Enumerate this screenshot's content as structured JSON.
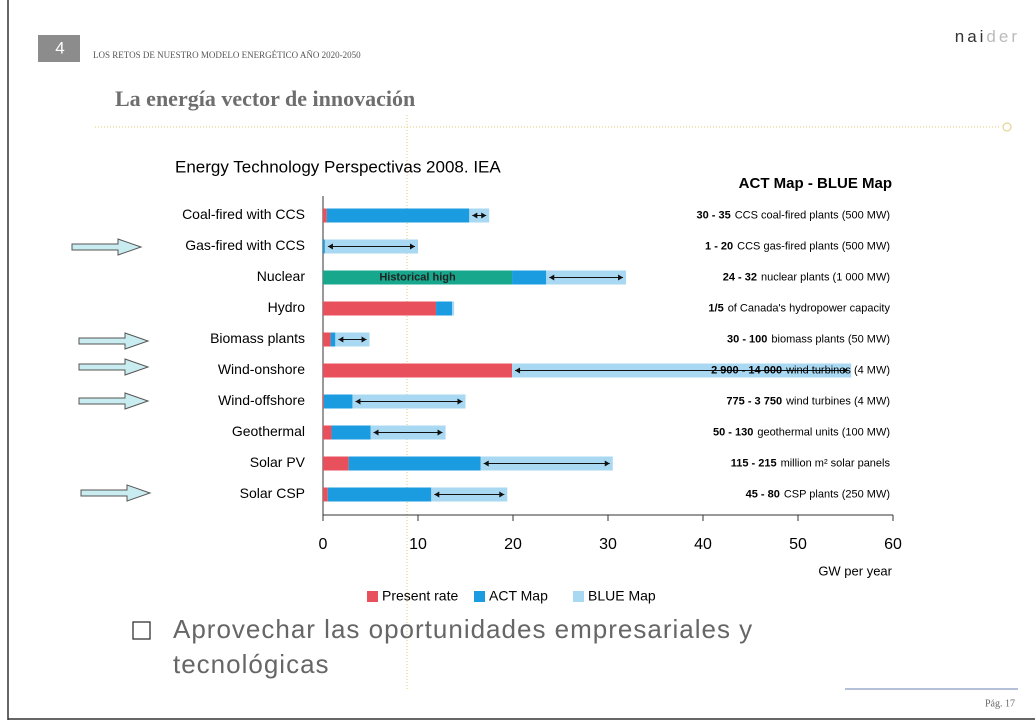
{
  "slide_number": "4",
  "header": "LOS RETOS DE NUESTRO MODELO ENERGÉTICO AÑO 2020-2050",
  "logo": [
    "nai",
    "der"
  ],
  "title": "La energía vector de innovación",
  "subtitle": "Energy Technology Perspectivas 2008. IEA",
  "bullet": [
    "Aprovechar las oportunidades empresariales y",
    "tecnológicas"
  ],
  "footer": "Pág. 17",
  "chart_data": {
    "type": "stacked_bar_horizontal",
    "title": "ACT Map - BLUE Map",
    "x_label": "GW per year",
    "categories": [
      "Coal-fired with CCS",
      "Gas-fired with CCS",
      "Nuclear",
      "Hydro",
      "Biomass plants",
      "Wind-onshore",
      "Wind-offshore",
      "Geothermal",
      "Solar PV",
      "Solar CSP"
    ],
    "historical_high": {
      "label": "Historical high",
      "color": "#17a78c",
      "values": [
        null,
        null,
        19.9,
        null,
        null,
        null,
        null,
        null,
        null,
        null
      ]
    },
    "series": [
      {
        "name": "Present rate",
        "color": "#e8505b",
        "values": [
          0.4,
          0,
          null,
          11.9,
          0.8,
          19.9,
          0.1,
          0.9,
          2.7,
          0.5
        ]
      },
      {
        "name": "ACT Map",
        "color": "#1b9ce0",
        "values": [
          15,
          0.2,
          3.6,
          1.7,
          0.5,
          0,
          3,
          4.1,
          13.9,
          10.9
        ]
      },
      {
        "name": "BLUE Map",
        "color": "#a9d8f2",
        "values": [
          2.1,
          9.8,
          8.4,
          0.2,
          3.6,
          35.7,
          11.9,
          7.9,
          13.9,
          8
        ]
      }
    ],
    "notes": [
      {
        "bold": "30 - 35",
        "text": "CCS coal-fired plants (500 MW)"
      },
      {
        "bold": "1 - 20",
        "text": "CCS gas-fired plants (500 MW)"
      },
      {
        "bold": "24 - 32",
        "text": "nuclear plants (1 000 MW)"
      },
      {
        "bold": "1/5",
        "text": "of Canada's hydropower capacity"
      },
      {
        "bold": "30 - 100",
        "text": "biomass plants (50 MW)"
      },
      {
        "bold": "2 900 - 14 000",
        "text": "wind turbines (4 MW)"
      },
      {
        "bold": "775 - 3 750",
        "text": "wind turbines (4 MW)"
      },
      {
        "bold": "50 - 130",
        "text": "geothermal units (100 MW)"
      },
      {
        "bold": "115 - 215",
        "text": "million m² solar panels"
      },
      {
        "bold": "45 - 80",
        "text": "CSP plants (250 MW)"
      }
    ],
    "xlim": [
      0,
      60
    ],
    "xticks": [
      0,
      10,
      20,
      30,
      40,
      50,
      60
    ]
  }
}
